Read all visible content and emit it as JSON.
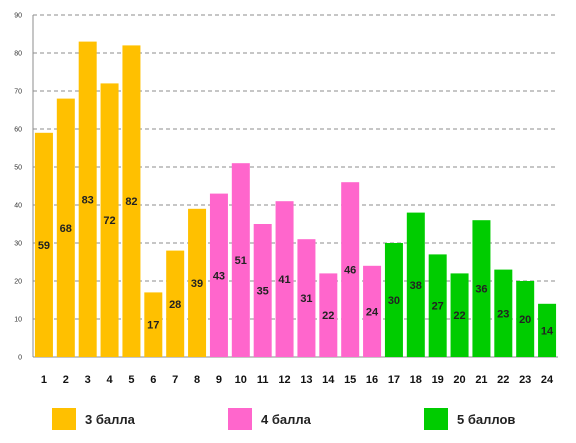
{
  "chart_data": {
    "type": "bar",
    "title": "",
    "xlabel": "",
    "ylabel": "",
    "ylim": [
      0,
      90
    ],
    "y_ticks": [
      0,
      10,
      20,
      30,
      40,
      50,
      60,
      70,
      80,
      90
    ],
    "grid": true,
    "legend_placement": "bottom",
    "categories": [
      "1",
      "2",
      "3",
      "4",
      "5",
      "6",
      "7",
      "8",
      "9",
      "10",
      "11",
      "12",
      "13",
      "14",
      "15",
      "16",
      "17",
      "18",
      "19",
      "20",
      "21",
      "22",
      "23",
      "24"
    ],
    "values": [
      59,
      68,
      83,
      72,
      82,
      17,
      28,
      39,
      43,
      51,
      35,
      41,
      31,
      22,
      46,
      24,
      30,
      38,
      27,
      22,
      36,
      23,
      20,
      14
    ],
    "series_groups": [
      {
        "name": "3 балла",
        "color": "#FFC000",
        "from": 0,
        "to": 7
      },
      {
        "name": "4 балла",
        "color": "#FF66CC",
        "from": 8,
        "to": 15
      },
      {
        "name": "5 баллов",
        "color": "#00CC00",
        "from": 16,
        "to": 23
      }
    ]
  }
}
